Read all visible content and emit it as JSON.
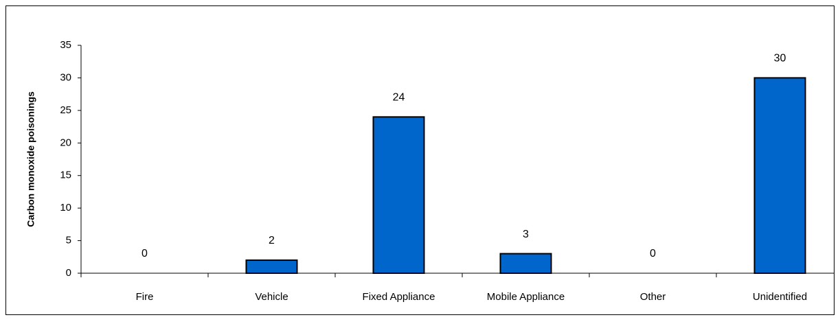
{
  "chart_data": {
    "type": "bar",
    "y_label": "Carbon monoxide poisonings",
    "categories": [
      "Fire",
      "Vehicle",
      "Fixed Appliance",
      "Mobile Appliance",
      "Other",
      "Unidentified"
    ],
    "values": [
      0,
      2,
      24,
      3,
      0,
      30
    ],
    "color": "#0066cc",
    "ylim": [
      0,
      35
    ],
    "yticks": [
      0,
      5,
      10,
      15,
      20,
      25,
      30,
      35
    ],
    "grid": false
  }
}
